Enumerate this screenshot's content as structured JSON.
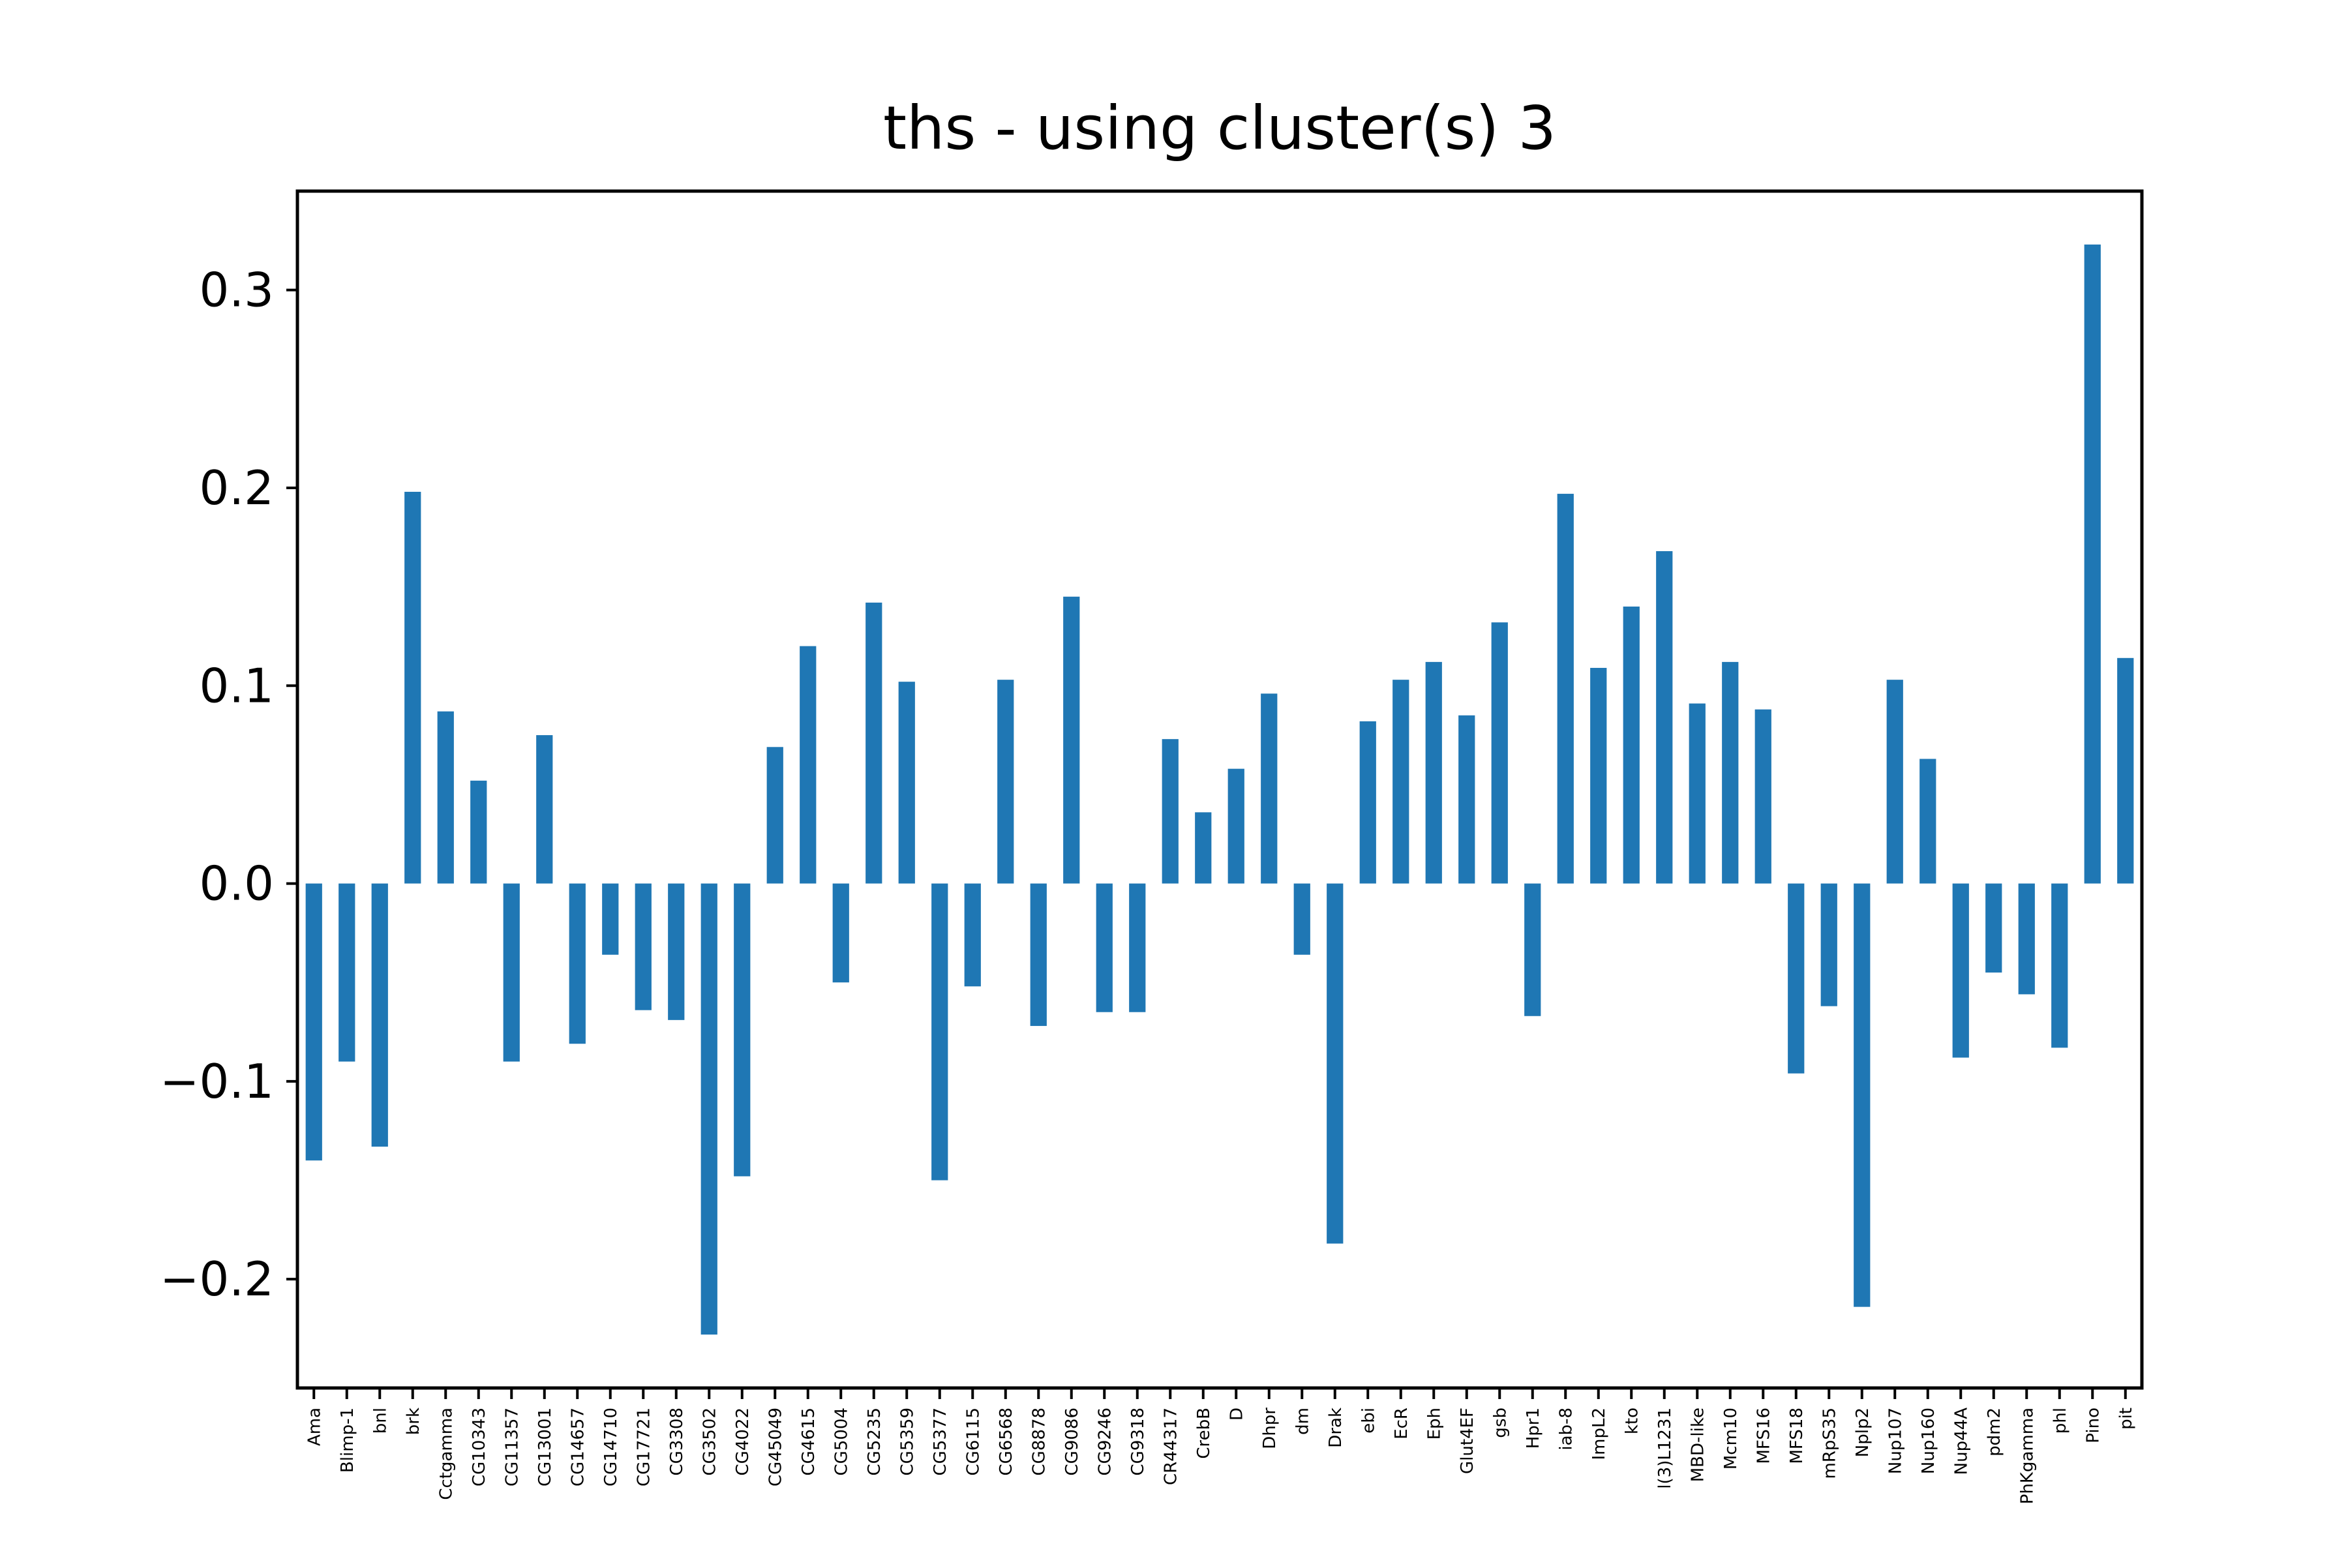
{
  "chart_data": {
    "type": "bar",
    "title": "ths - using cluster(s) 3",
    "xlabel": "",
    "ylabel": "",
    "ylim": [
      -0.255,
      0.35
    ],
    "yticks": [
      0.3,
      0.2,
      0.1,
      0.0,
      -0.1,
      -0.2
    ],
    "ytick_labels": [
      "0.3",
      "0.2",
      "0.1",
      "0.0",
      "−0.1",
      "−0.2"
    ],
    "grid": false,
    "legend": "none",
    "bar_color": "#1f77b4",
    "categories": [
      "Ama",
      "Blimp-1",
      "bnl",
      "brk",
      "Cctgamma",
      "CG10343",
      "CG11357",
      "CG13001",
      "CG14657",
      "CG14710",
      "CG17721",
      "CG3308",
      "CG3502",
      "CG4022",
      "CG45049",
      "CG4615",
      "CG5004",
      "CG5235",
      "CG5359",
      "CG5377",
      "CG6115",
      "CG6568",
      "CG8878",
      "CG9086",
      "CG9246",
      "CG9318",
      "CR44317",
      "CrebB",
      "D",
      "Dhpr",
      "dm",
      "Drak",
      "ebi",
      "EcR",
      "Eph",
      "Glut4EF",
      "gsb",
      "Hpr1",
      "iab-8",
      "ImpL2",
      "kto",
      "l(3)L1231",
      "MBD-like",
      "Mcm10",
      "MFS16",
      "MFS18",
      "mRpS35",
      "Nplp2",
      "Nup107",
      "Nup160",
      "Nup44A",
      "pdm2",
      "PhKgamma",
      "phl",
      "Pino",
      "pit"
    ],
    "values": [
      -0.14,
      -0.09,
      -0.133,
      0.198,
      0.087,
      0.052,
      -0.09,
      0.075,
      -0.081,
      -0.036,
      -0.064,
      -0.069,
      -0.228,
      -0.148,
      0.069,
      0.12,
      -0.05,
      0.142,
      0.102,
      -0.15,
      -0.052,
      0.103,
      -0.072,
      0.145,
      -0.065,
      -0.065,
      0.073,
      0.036,
      0.058,
      0.096,
      -0.036,
      -0.182,
      0.082,
      0.103,
      0.112,
      0.085,
      0.132,
      -0.067,
      0.197,
      0.109,
      0.14,
      0.168,
      0.091,
      0.112,
      0.088,
      -0.096,
      -0.062,
      -0.214,
      0.103,
      0.063,
      -0.088,
      -0.045,
      -0.056,
      -0.083,
      0.323,
      0.114
    ]
  }
}
